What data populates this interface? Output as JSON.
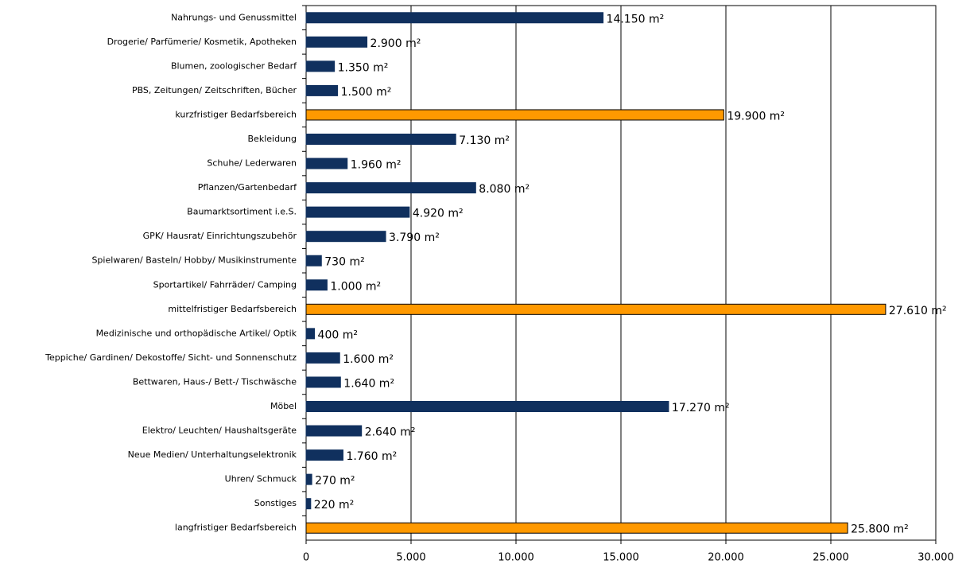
{
  "chart_data": {
    "type": "hbar",
    "categories": [
      "Nahrungs- und Genussmittel",
      "Drogerie/ Parfümerie/ Kosmetik, Apotheken",
      "Blumen, zoologischer Bedarf",
      "PBS, Zeitungen/ Zeitschriften, Bücher",
      "kurzfristiger Bedarfsbereich",
      "Bekleidung",
      "Schuhe/ Lederwaren",
      "Pflanzen/Gartenbedarf",
      "Baumarktsortiment i.e.S.",
      "GPK/ Hausrat/ Einrichtungszubehör",
      "Spielwaren/ Basteln/ Hobby/ Musikinstrumente",
      "Sportartikel/ Fahrräder/ Camping",
      "mittelfristiger Bedarfsbereich",
      "Medizinische und orthopädische Artikel/ Optik",
      "Teppiche/ Gardinen/ Dekostoffe/ Sicht- und Sonnenschutz",
      "Bettwaren, Haus-/ Bett-/ Tischwäsche",
      "Möbel",
      "Elektro/ Leuchten/ Haushaltsgeräte",
      "Neue Medien/ Unterhaltungselektronik",
      "Uhren/ Schmuck",
      "Sonstiges",
      "langfristiger Bedarfsbereich"
    ],
    "values": [
      14150,
      2900,
      1350,
      1500,
      19900,
      7130,
      1960,
      8080,
      4920,
      3790,
      730,
      1000,
      27610,
      400,
      1600,
      1640,
      17270,
      2640,
      1760,
      270,
      220,
      25800
    ],
    "value_labels": [
      "14.150 m²",
      "2.900 m²",
      "1.350 m²",
      "1.500 m²",
      "19.900 m²",
      "7.130 m²",
      "1.960 m²",
      "8.080 m²",
      "4.920 m²",
      "3.790 m²",
      "730 m²",
      "1.000 m²",
      "27.610 m²",
      "400 m²",
      "1.600 m²",
      "1.640 m²",
      "17.270 m²",
      "2.640 m²",
      "1.760 m²",
      "270 m²",
      "220 m²",
      "25.800 m²"
    ],
    "colors": [
      "#10305e",
      "#10305e",
      "#10305e",
      "#10305e",
      "#ff9900",
      "#10305e",
      "#10305e",
      "#10305e",
      "#10305e",
      "#10305e",
      "#10305e",
      "#10305e",
      "#ff9900",
      "#10305e",
      "#10305e",
      "#10305e",
      "#10305e",
      "#10305e",
      "#10305e",
      "#10305e",
      "#10305e",
      "#ff9900"
    ],
    "xlim": [
      0,
      30000
    ],
    "xticks": [
      0,
      {
        "value": 5000,
        "label": "5.000"
      },
      {
        "value": 10000,
        "label": "10.000"
      },
      {
        "value": 15000,
        "label": "15.000"
      },
      {
        "value": 20000,
        "label": "20.000"
      },
      {
        "value": 25000,
        "label": "25.000"
      },
      {
        "value": 30000,
        "label": "30.000"
      }
    ],
    "grid": true
  }
}
